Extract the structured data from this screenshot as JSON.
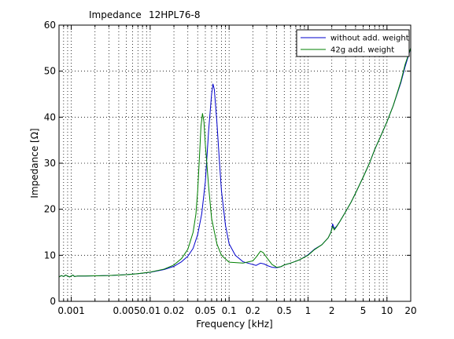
{
  "chart_data": {
    "type": "line",
    "title_parts": [
      "Impedance",
      "12HPL76-8"
    ],
    "xlabel": "Frequency [kHz]",
    "ylabel": "Impedance [Ω]",
    "x_scale": "log",
    "xlim": [
      0.0007,
      20
    ],
    "ylim": [
      0,
      60
    ],
    "grid": true,
    "legend_position": "top-right",
    "x_ticks": [
      {
        "value": 0.001,
        "label": "0.001"
      },
      {
        "value": 0.005,
        "label": "0.005"
      },
      {
        "value": 0.01,
        "label": "0.01"
      },
      {
        "value": 0.02,
        "label": "0.02"
      },
      {
        "value": 0.05,
        "label": "0.05"
      },
      {
        "value": 0.1,
        "label": "0.1"
      },
      {
        "value": 0.2,
        "label": "0.2"
      },
      {
        "value": 0.5,
        "label": "0.5"
      },
      {
        "value": 1,
        "label": "1"
      },
      {
        "value": 2,
        "label": "2"
      },
      {
        "value": 5,
        "label": "5"
      },
      {
        "value": 10,
        "label": "10"
      },
      {
        "value": 20,
        "label": "20"
      }
    ],
    "y_ticks": [
      {
        "value": 0,
        "label": "0"
      },
      {
        "value": 10,
        "label": "10"
      },
      {
        "value": 20,
        "label": "20"
      },
      {
        "value": 30,
        "label": "30"
      },
      {
        "value": 40,
        "label": "40"
      },
      {
        "value": 50,
        "label": "50"
      },
      {
        "value": 60,
        "label": "60"
      }
    ],
    "series": [
      {
        "name": "without add. weight",
        "color": "#0000cc",
        "points": [
          [
            0.0007,
            5.3
          ],
          [
            0.00075,
            5.6
          ],
          [
            0.0008,
            5.4
          ],
          [
            0.00085,
            5.7
          ],
          [
            0.0009,
            5.5
          ],
          [
            0.00095,
            5.3
          ],
          [
            0.001,
            5.5
          ],
          [
            0.00105,
            5.7
          ],
          [
            0.0011,
            5.4
          ],
          [
            0.0012,
            5.5
          ],
          [
            0.0015,
            5.5
          ],
          [
            0.002,
            5.55
          ],
          [
            0.003,
            5.6
          ],
          [
            0.005,
            5.8
          ],
          [
            0.007,
            6.0
          ],
          [
            0.01,
            6.3
          ],
          [
            0.015,
            6.9
          ],
          [
            0.02,
            7.6
          ],
          [
            0.025,
            8.6
          ],
          [
            0.03,
            9.8
          ],
          [
            0.035,
            11.5
          ],
          [
            0.04,
            14.5
          ],
          [
            0.045,
            19.0
          ],
          [
            0.05,
            26.0
          ],
          [
            0.055,
            37.0
          ],
          [
            0.06,
            45.0
          ],
          [
            0.0625,
            47.2
          ],
          [
            0.065,
            46.0
          ],
          [
            0.07,
            39.0
          ],
          [
            0.075,
            31.0
          ],
          [
            0.08,
            24.0
          ],
          [
            0.09,
            16.5
          ],
          [
            0.1,
            12.5
          ],
          [
            0.12,
            10.0
          ],
          [
            0.15,
            8.6
          ],
          [
            0.2,
            8.0
          ],
          [
            0.22,
            7.8
          ],
          [
            0.25,
            8.3
          ],
          [
            0.28,
            8.1
          ],
          [
            0.3,
            7.8
          ],
          [
            0.35,
            7.4
          ],
          [
            0.4,
            7.3
          ],
          [
            0.45,
            7.5
          ],
          [
            0.5,
            7.9
          ],
          [
            0.6,
            8.3
          ],
          [
            0.7,
            8.7
          ],
          [
            0.8,
            9.1
          ],
          [
            1.0,
            10.1
          ],
          [
            1.2,
            11.3
          ],
          [
            1.5,
            12.3
          ],
          [
            1.8,
            13.8
          ],
          [
            1.95,
            15.0
          ],
          [
            2.05,
            16.8
          ],
          [
            2.15,
            15.8
          ],
          [
            2.3,
            16.3
          ],
          [
            2.5,
            17.2
          ],
          [
            3.0,
            19.5
          ],
          [
            3.5,
            21.5
          ],
          [
            4.0,
            23.5
          ],
          [
            5.0,
            27.0
          ],
          [
            6.0,
            30.0
          ],
          [
            7.0,
            33.0
          ],
          [
            8.0,
            35.2
          ],
          [
            10.0,
            39.0
          ],
          [
            12.0,
            42.5
          ],
          [
            15.0,
            47.5
          ],
          [
            17.0,
            51.0
          ],
          [
            20.0,
            55.0
          ]
        ]
      },
      {
        "name": "42g add. weight",
        "color": "#008000",
        "points": [
          [
            0.0007,
            5.3
          ],
          [
            0.00075,
            5.6
          ],
          [
            0.0008,
            5.4
          ],
          [
            0.00085,
            5.7
          ],
          [
            0.0009,
            5.5
          ],
          [
            0.00095,
            5.3
          ],
          [
            0.001,
            5.5
          ],
          [
            0.00105,
            5.7
          ],
          [
            0.0011,
            5.4
          ],
          [
            0.0012,
            5.5
          ],
          [
            0.0015,
            5.5
          ],
          [
            0.002,
            5.55
          ],
          [
            0.003,
            5.6
          ],
          [
            0.005,
            5.8
          ],
          [
            0.007,
            6.0
          ],
          [
            0.01,
            6.35
          ],
          [
            0.015,
            7.0
          ],
          [
            0.02,
            7.9
          ],
          [
            0.025,
            9.3
          ],
          [
            0.03,
            11.3
          ],
          [
            0.035,
            15.0
          ],
          [
            0.038,
            19.0
          ],
          [
            0.04,
            24.0
          ],
          [
            0.042,
            31.0
          ],
          [
            0.044,
            38.0
          ],
          [
            0.046,
            40.8
          ],
          [
            0.048,
            39.0
          ],
          [
            0.05,
            34.0
          ],
          [
            0.055,
            25.0
          ],
          [
            0.06,
            18.0
          ],
          [
            0.07,
            12.5
          ],
          [
            0.08,
            10.0
          ],
          [
            0.1,
            8.5
          ],
          [
            0.15,
            8.3
          ],
          [
            0.2,
            8.8
          ],
          [
            0.22,
            9.6
          ],
          [
            0.25,
            10.9
          ],
          [
            0.27,
            10.6
          ],
          [
            0.3,
            9.5
          ],
          [
            0.35,
            8.0
          ],
          [
            0.4,
            7.4
          ],
          [
            0.45,
            7.5
          ],
          [
            0.5,
            7.9
          ],
          [
            0.6,
            8.3
          ],
          [
            0.7,
            8.7
          ],
          [
            0.8,
            9.1
          ],
          [
            1.0,
            10.0
          ],
          [
            1.2,
            11.2
          ],
          [
            1.5,
            12.3
          ],
          [
            1.8,
            13.8
          ],
          [
            1.95,
            15.0
          ],
          [
            2.05,
            16.3
          ],
          [
            2.15,
            15.5
          ],
          [
            2.3,
            16.2
          ],
          [
            2.5,
            17.2
          ],
          [
            3.0,
            19.5
          ],
          [
            3.5,
            21.5
          ],
          [
            4.0,
            23.5
          ],
          [
            5.0,
            27.0
          ],
          [
            6.0,
            30.0
          ],
          [
            7.0,
            33.0
          ],
          [
            8.0,
            35.2
          ],
          [
            10.0,
            39.0
          ],
          [
            12.0,
            42.5
          ],
          [
            15.0,
            47.8
          ],
          [
            17.0,
            51.5
          ],
          [
            20.0,
            55.0
          ]
        ]
      }
    ]
  }
}
